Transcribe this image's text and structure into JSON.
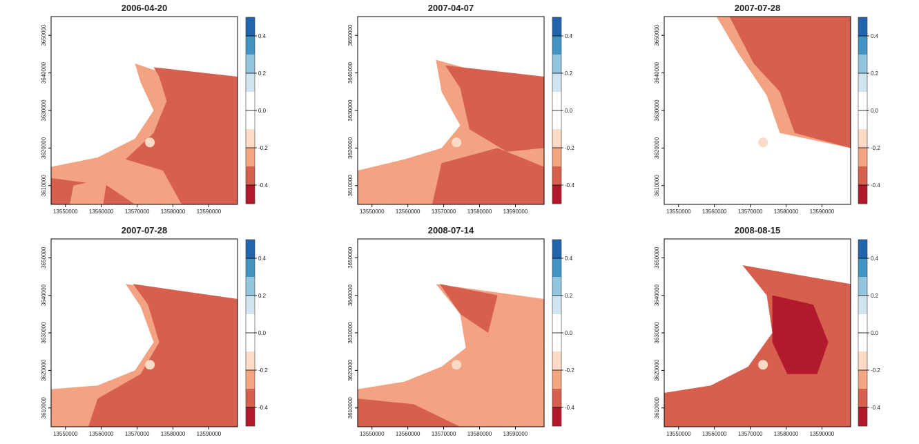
{
  "chart_data": [
    {
      "type": "heatmap",
      "title": "2006-04-20",
      "x_ticks": [
        "13550000",
        "13560000",
        "13570000",
        "13580000",
        "13590000"
      ],
      "y_ticks": [
        "3610000",
        "3620000",
        "3630000",
        "3640000",
        "3650000"
      ],
      "xlim": [
        13546000,
        13598000
      ],
      "ylim": [
        3605000,
        3655000
      ],
      "legend": {
        "ticks": [
          "0.4",
          "0.2",
          "0.0",
          "-0.2",
          "-0.4"
        ],
        "range": [
          -0.5,
          0.5
        ],
        "placement": "right"
      },
      "dominant_value": -0.3,
      "grid": false
    },
    {
      "type": "heatmap",
      "title": "2007-04-07",
      "x_ticks": [
        "13550000",
        "13560000",
        "13570000",
        "13580000",
        "13590000"
      ],
      "y_ticks": [
        "3610000",
        "3620000",
        "3630000",
        "3640000",
        "3650000"
      ],
      "xlim": [
        13546000,
        13598000
      ],
      "ylim": [
        3605000,
        3655000
      ],
      "legend": {
        "ticks": [
          "0.4",
          "0.2",
          "0.0",
          "-0.2",
          "-0.4"
        ],
        "range": [
          -0.5,
          0.5
        ],
        "placement": "right"
      },
      "dominant_value": -0.25,
      "grid": false
    },
    {
      "type": "heatmap",
      "title": "2007-07-28",
      "x_ticks": [
        "13550000",
        "13560000",
        "13570000",
        "13580000",
        "13590000"
      ],
      "y_ticks": [
        "3610000",
        "3620000",
        "3630000",
        "3640000",
        "3650000"
      ],
      "xlim": [
        13546000,
        13598000
      ],
      "ylim": [
        3605000,
        3655000
      ],
      "legend": {
        "ticks": [
          "0.4",
          "0.2",
          "0.0",
          "-0.2",
          "-0.4"
        ],
        "range": [
          -0.5,
          0.5
        ],
        "placement": "right"
      },
      "dominant_value": -0.3,
      "grid": false
    },
    {
      "type": "heatmap",
      "title": "2007-07-28",
      "x_ticks": [
        "13550000",
        "13560000",
        "13570000",
        "13580000",
        "13590000"
      ],
      "y_ticks": [
        "3610000",
        "3620000",
        "3630000",
        "3640000",
        "3650000"
      ],
      "xlim": [
        13546000,
        13598000
      ],
      "ylim": [
        3605000,
        3655000
      ],
      "legend": {
        "ticks": [
          "0.4",
          "0.2",
          "0.0",
          "-0.2",
          "-0.4"
        ],
        "range": [
          -0.5,
          0.5
        ],
        "placement": "right"
      },
      "dominant_value": -0.3,
      "grid": false
    },
    {
      "type": "heatmap",
      "title": "2008-07-14",
      "x_ticks": [
        "13550000",
        "13560000",
        "13570000",
        "13580000",
        "13590000"
      ],
      "y_ticks": [
        "3610000",
        "3620000",
        "3630000",
        "3640000",
        "3650000"
      ],
      "xlim": [
        13546000,
        13598000
      ],
      "ylim": [
        3605000,
        3655000
      ],
      "legend": {
        "ticks": [
          "0.4",
          "0.2",
          "0.0",
          "-0.2",
          "-0.4"
        ],
        "range": [
          -0.5,
          0.5
        ],
        "placement": "right"
      },
      "dominant_value": -0.25,
      "grid": false
    },
    {
      "type": "heatmap",
      "title": "2008-08-15",
      "x_ticks": [
        "13550000",
        "13560000",
        "13570000",
        "13580000",
        "13590000"
      ],
      "y_ticks": [
        "3610000",
        "3620000",
        "3630000",
        "3640000",
        "3650000"
      ],
      "xlim": [
        13546000,
        13598000
      ],
      "ylim": [
        3605000,
        3655000
      ],
      "legend": {
        "ticks": [
          "0.4",
          "0.2",
          "0.0",
          "-0.2",
          "-0.4"
        ],
        "range": [
          -0.5,
          0.5
        ],
        "placement": "right"
      },
      "dominant_value": -0.35,
      "grid": false
    }
  ],
  "colors": {
    "scale": [
      "#b2182b",
      "#d6604d",
      "#f4a582",
      "#fddbc7",
      "#ffffff",
      "#ffffff",
      "#d1e5f0",
      "#92c5de",
      "#4393c3",
      "#2166ac"
    ],
    "background": "#ffffff",
    "text": "#222222"
  }
}
